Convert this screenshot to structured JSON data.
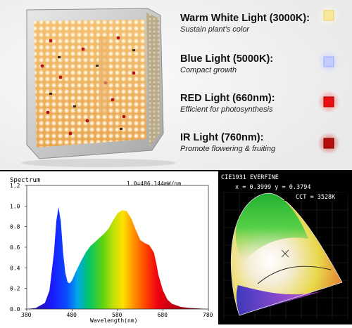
{
  "lights": [
    {
      "title": "Warm White Light (3000K):",
      "desc": "Sustain plant's color",
      "color": "#f6e79a",
      "glow": "#fff6c8"
    },
    {
      "title": "Blue Light (5000K):",
      "desc": "Compact growth",
      "color": "#aab8ff",
      "glow": "#dde3ff"
    },
    {
      "title": "RED Light (660nm):",
      "desc": "Efficient for photosynthesis",
      "color": "#e81010",
      "glow": "#ff8a8a"
    },
    {
      "title": "IR Light (760nm):",
      "desc": "Promote flowering & fruiting",
      "color": "#b80d0d",
      "glow": "#e86a6a"
    }
  ],
  "spectrum": {
    "title": "Spectrum",
    "scale_note": "1.0=486.144mW/nm",
    "xlabel": "Wavelength(nm)",
    "x_ticks": [
      "380",
      "480",
      "580",
      "680",
      "780"
    ],
    "y_ticks": [
      "0.0",
      "0.2",
      "0.4",
      "0.6",
      "0.8",
      "1.0",
      "1.2"
    ]
  },
  "cie": {
    "title": "CIE1931 EVERFINE",
    "xy": "x = 0.3999 y = 0.3794",
    "cct": "CCT = 3528K"
  },
  "chart_data": {
    "type": "area",
    "title": "Spectrum",
    "xlabel": "Wavelength(nm)",
    "ylabel": "",
    "xlim": [
      380,
      780
    ],
    "ylim": [
      0,
      1.2
    ],
    "x": [
      380,
      400,
      420,
      430,
      440,
      445,
      450,
      455,
      460,
      465,
      470,
      475,
      480,
      490,
      500,
      510,
      520,
      530,
      540,
      550,
      560,
      570,
      580,
      590,
      600,
      610,
      620,
      630,
      640,
      650,
      660,
      665,
      670,
      680,
      690,
      700,
      720,
      740,
      760,
      780
    ],
    "y": [
      0.0,
      0.01,
      0.06,
      0.18,
      0.55,
      0.85,
      0.99,
      0.85,
      0.55,
      0.35,
      0.26,
      0.25,
      0.28,
      0.38,
      0.47,
      0.55,
      0.61,
      0.65,
      0.69,
      0.73,
      0.78,
      0.86,
      0.93,
      0.96,
      0.95,
      0.88,
      0.77,
      0.67,
      0.64,
      0.62,
      0.55,
      0.45,
      0.33,
      0.18,
      0.09,
      0.05,
      0.02,
      0.01,
      0.005,
      0.0
    ]
  }
}
